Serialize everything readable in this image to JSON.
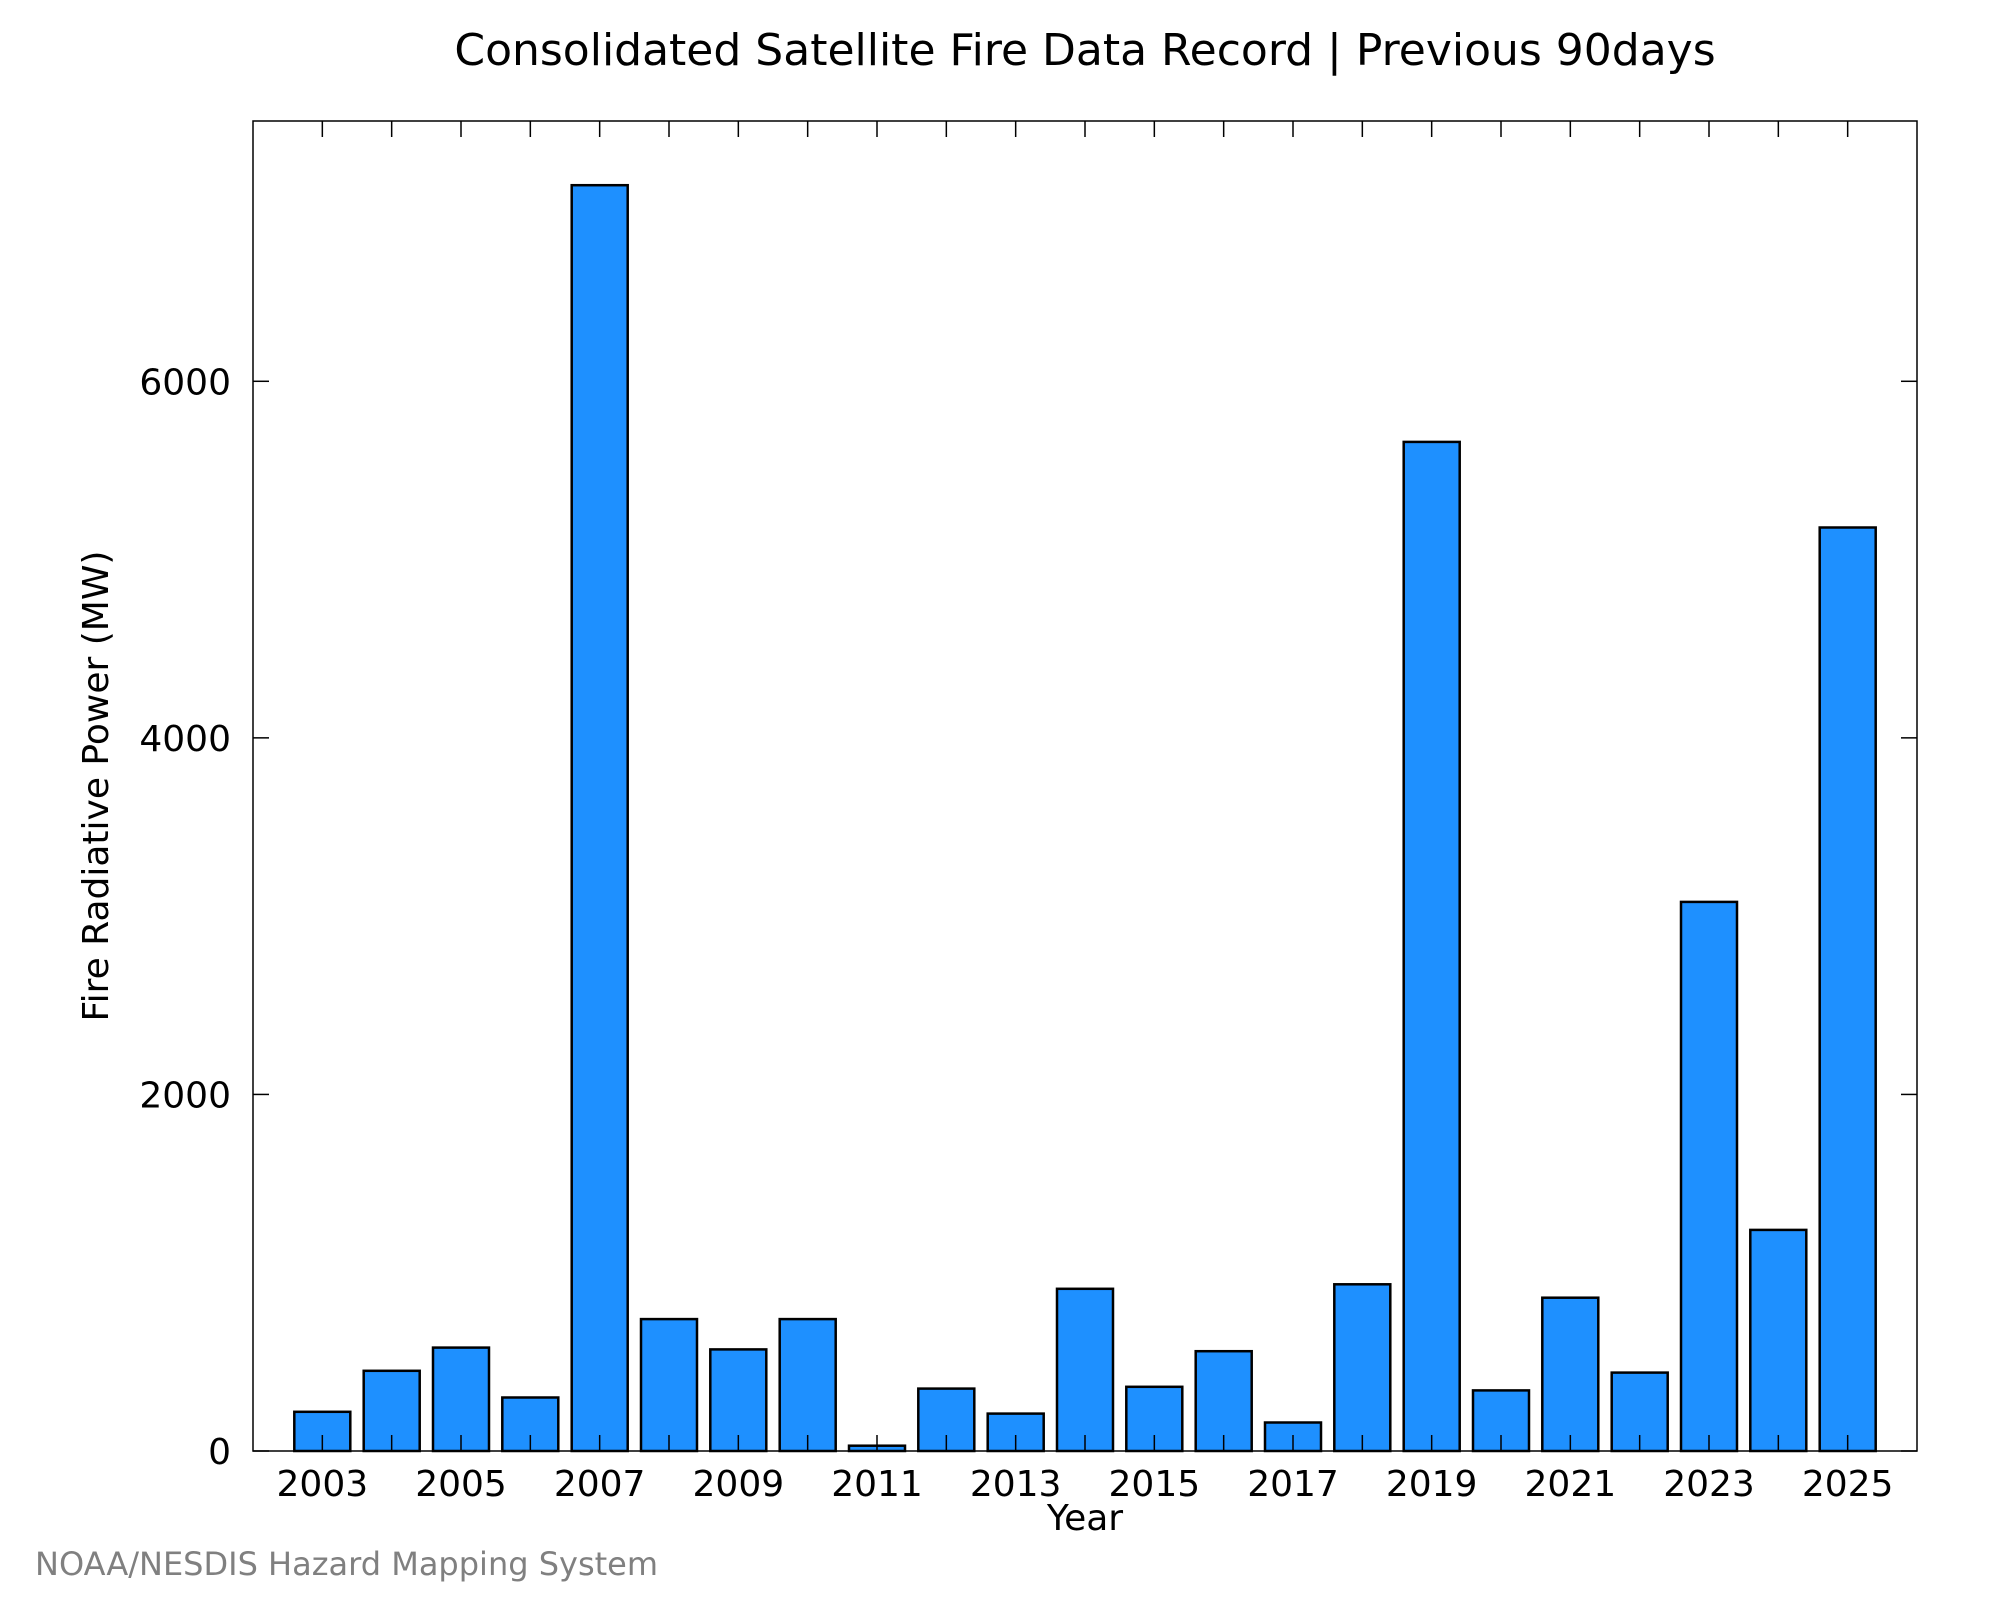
{
  "title": "Consolidated Satellite Fire Data Record | Previous 90days",
  "credit": "NOAA/NESDIS Hazard Mapping System",
  "colors": {
    "bar_fill": "#1e90ff",
    "bar_stroke": "#000000",
    "credit": "#808080"
  },
  "chart_data": {
    "type": "bar",
    "title": "Consolidated Satellite Fire Data Record | Previous 90days",
    "xlabel": "Year",
    "ylabel": "Fire Radiative Power (MW)",
    "categories": [
      "2003",
      "2004",
      "2005",
      "2006",
      "2007",
      "2008",
      "2009",
      "2010",
      "2011",
      "2012",
      "2013",
      "2014",
      "2015",
      "2016",
      "2017",
      "2018",
      "2019",
      "2020",
      "2021",
      "2022",
      "2023",
      "2024",
      "2025"
    ],
    "x_tick_labels": [
      "2003",
      "2005",
      "2007",
      "2009",
      "2011",
      "2013",
      "2015",
      "2017",
      "2019",
      "2021",
      "2023",
      "2025"
    ],
    "values": [
      220,
      450,
      580,
      300,
      7100,
      740,
      570,
      740,
      30,
      350,
      210,
      910,
      360,
      560,
      160,
      935,
      5660,
      340,
      860,
      440,
      3080,
      1240,
      5180
    ],
    "ylim": [
      0,
      7460
    ],
    "y_ticks": [
      0,
      2000,
      4000,
      6000
    ],
    "grid": false,
    "legend": "none"
  }
}
